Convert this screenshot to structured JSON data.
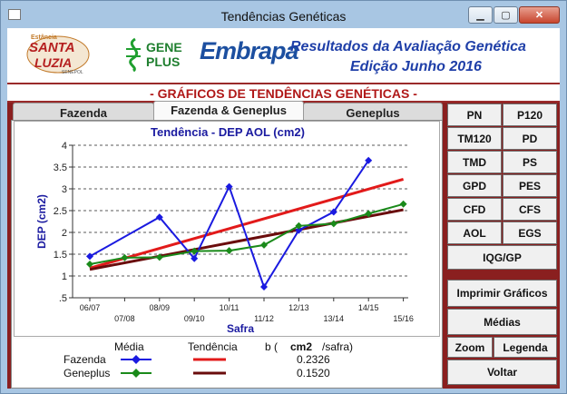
{
  "window": {
    "title": "Tendências Genéticas",
    "minimize": "▁",
    "maximize": "▢",
    "close": "✕"
  },
  "header": {
    "logo_santa_luzia": {
      "top": "Estância",
      "line1": "SANTA",
      "line2": "LUZIA",
      "tag": "SENEPOL"
    },
    "logo_geneplus": {
      "line1": "GENE",
      "line2": "PLUS"
    },
    "logo_embrapa": "Embrapa",
    "title_line1": "Resultados da Avaliação Genética",
    "title_line2": "Edição Junho 2016"
  },
  "banner": "- GRÁFICOS DE TENDÊNCIAS GENÉTICAS -",
  "tabs": [
    {
      "label": "Fazenda",
      "active": false
    },
    {
      "label": "Fazenda & Geneplus",
      "active": true
    },
    {
      "label": "Geneplus",
      "active": false
    }
  ],
  "chart_data": {
    "type": "line",
    "title": "Tendência - DEP AOL (cm2)",
    "xlabel": "Safra",
    "ylabel": "DEP (cm2)",
    "ylim": [
      0.5,
      4
    ],
    "yticks": [
      "4",
      "3.5",
      "3",
      "2.5",
      "2",
      "1.5",
      "1",
      ".5"
    ],
    "categories": [
      "06/07",
      "07/08",
      "08/09",
      "09/10",
      "10/11",
      "11/12",
      "12/13",
      "13/14",
      "14/15",
      "15/16"
    ],
    "grid": "horizontal dashed",
    "series": [
      {
        "name": "Fazenda",
        "color": "#1a1ae0",
        "values": [
          1.45,
          null,
          2.35,
          1.4,
          3.05,
          0.75,
          2.05,
          2.47,
          3.65,
          null
        ]
      },
      {
        "name": "Geneplus",
        "color": "#1a8a1a",
        "values": [
          1.27,
          1.42,
          1.43,
          1.57,
          1.58,
          1.71,
          2.15,
          2.2,
          2.43,
          2.65
        ]
      }
    ],
    "trends": [
      {
        "name": "Fazenda",
        "color": "#e21a1a",
        "from": 1.18,
        "to": 3.22
      },
      {
        "name": "Geneplus",
        "color": "#6a0c0c",
        "from": 1.15,
        "to": 2.52
      }
    ]
  },
  "legend": {
    "col_media": "Média",
    "col_tendencia": "Tendência",
    "col_b_prefix": "b (",
    "col_b_unit": "cm2",
    "col_b_suffix": "/safra)",
    "rows": [
      {
        "label": "Fazenda",
        "b": "0.2326"
      },
      {
        "label": "Geneplus",
        "b": "0.1520"
      }
    ]
  },
  "traits": [
    "PN",
    "P120",
    "TM120",
    "PD",
    "TMD",
    "PS",
    "GPD",
    "PES",
    "CFD",
    "CFS",
    "AOL",
    "EGS"
  ],
  "buttons": {
    "iqg": "IQG/GP",
    "print": "Imprimir Gráficos",
    "medias": "Médias",
    "zoom": "Zoom",
    "legenda": "Legenda",
    "voltar": "Voltar"
  }
}
